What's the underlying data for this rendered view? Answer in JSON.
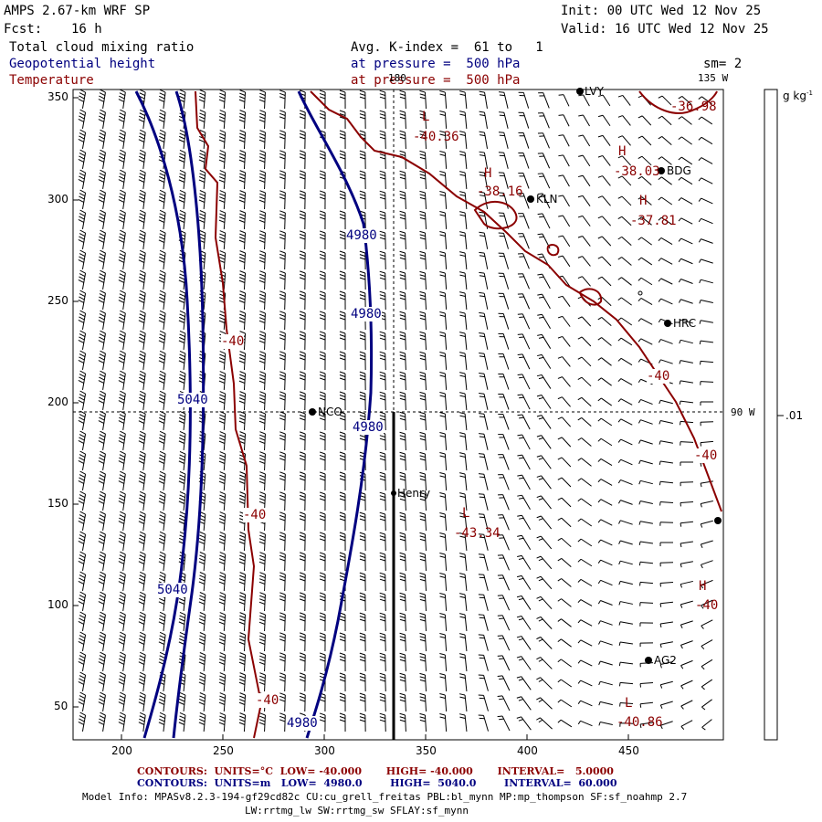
{
  "header": {
    "title": "AMPS 2.67-km WRF SP",
    "fcst_label": "Fcst:",
    "fcst_value": "16 h",
    "init": "Init: 00 UTC Wed 12 Nov 25",
    "valid": "Valid: 16 UTC Wed 12 Nov 25",
    "field1": "Total cloud mixing ratio",
    "field2": "Geopotential height",
    "field3": "Temperature",
    "kindex": "Avg. K-index =  61 to   1",
    "pressure1": "at pressure =  500 hPa",
    "pressure2": "at pressure =  500 hPa",
    "smooth": "sm= 2"
  },
  "axes": {
    "x_ticks": [
      "200",
      "250",
      "300",
      "350",
      "400",
      "450"
    ],
    "y_ticks": [
      "350",
      "300",
      "250",
      "200",
      "150",
      "100",
      "50"
    ],
    "lon_top": "180",
    "lon_top_right": "135 W",
    "lon_right": "90 W"
  },
  "colorbar": {
    "units": "g kg",
    "units_sup": "-1",
    "value": ".01"
  },
  "stations": [
    {
      "name": "LVY"
    },
    {
      "name": "BDG"
    },
    {
      "name": "KLN"
    },
    {
      "name": "HRC"
    },
    {
      "name": "NCO"
    },
    {
      "name": "Henry"
    },
    {
      "name": "AG2"
    }
  ],
  "contour_labels": {
    "height": [
      "4980",
      "4980",
      "4980",
      "4980",
      "5040",
      "5040"
    ],
    "temperature": [
      "-40",
      "-40",
      "-40",
      "-40",
      "-40",
      "-40",
      "-40"
    ]
  },
  "extrema": [
    {
      "kind": "L",
      "value": "-40.36"
    },
    {
      "kind": "H",
      "value": "-38.16"
    },
    {
      "kind": "H",
      "value": "-38.03"
    },
    {
      "kind": "H",
      "value": "-37.81"
    },
    {
      "kind": "L",
      "value": "-43.34"
    },
    {
      "kind": "H",
      "value": "-40"
    },
    {
      "kind": "L",
      "value": "-40.86"
    },
    {
      "kind": "",
      "value": "-36.98"
    }
  ],
  "footer": {
    "temp_line": "CONTOURS:  UNITS=°C  LOW= -40.000       HIGH= -40.000       INTERVAL=   5.0000",
    "height_line": "CONTOURS:  UNITS=m   LOW=  4980.0        HIGH=  5040.0        INTERVAL=  60.000",
    "model1": "Model Info: MPASv8.2.3-194-gf29cd82c CU:cu_grell_freitas PBL:bl_mynn MP:mp_thompson SF:sf_noahmp 2.7",
    "model2": "LW:rrtmg_lw SW:rrtmg_sw SFLAY:sf_mynn"
  },
  "colors": {
    "height_contour": "#000080",
    "temperature_contour": "#8b0000",
    "barb": "#000000"
  }
}
